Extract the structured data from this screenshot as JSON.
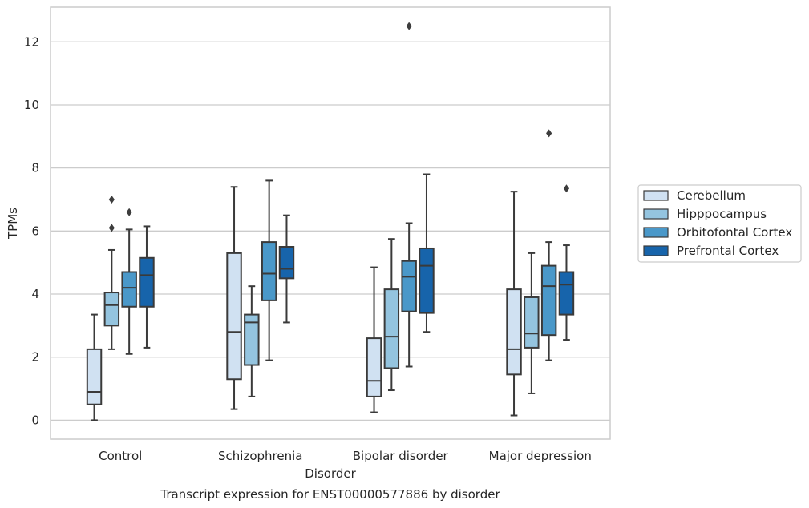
{
  "chart_data": {
    "type": "boxplot",
    "xlabel": "Disorder",
    "ylabel": "TPMs",
    "caption": "Transcript expression for ENST00000577886 by disorder",
    "ylim": [
      -0.6,
      13.1
    ],
    "yticks": [
      0,
      2,
      4,
      6,
      8,
      10,
      12
    ],
    "ytick_labels": [
      "0",
      "2",
      "4",
      "6",
      "8",
      "10",
      "12"
    ],
    "grid": "horizontal",
    "legend_position": "right",
    "categories": [
      "Control",
      "Schizophrenia",
      "Bipolar disorder",
      "Major depression"
    ],
    "series": [
      {
        "name": "Cerebellum",
        "color": "#d0e1f2",
        "boxes": [
          {
            "whislo": 0.0,
            "q1": 0.5,
            "med": 0.9,
            "q3": 2.25,
            "whishi": 3.35,
            "fliers": []
          },
          {
            "whislo": 0.35,
            "q1": 1.3,
            "med": 2.8,
            "q3": 5.3,
            "whishi": 7.4,
            "fliers": []
          },
          {
            "whislo": 0.25,
            "q1": 0.75,
            "med": 1.25,
            "q3": 2.6,
            "whishi": 4.85,
            "fliers": []
          },
          {
            "whislo": 0.15,
            "q1": 1.45,
            "med": 2.25,
            "q3": 4.15,
            "whishi": 7.25,
            "fliers": []
          }
        ]
      },
      {
        "name": "Hipppocampus",
        "color": "#94c4df",
        "boxes": [
          {
            "whislo": 2.25,
            "q1": 3.0,
            "med": 3.65,
            "q3": 4.05,
            "whishi": 5.4,
            "fliers": [
              6.1,
              7.0
            ]
          },
          {
            "whislo": 0.75,
            "q1": 1.75,
            "med": 3.1,
            "q3": 3.35,
            "whishi": 4.25,
            "fliers": []
          },
          {
            "whislo": 0.95,
            "q1": 1.65,
            "med": 2.65,
            "q3": 4.15,
            "whishi": 5.75,
            "fliers": []
          },
          {
            "whislo": 0.85,
            "q1": 2.3,
            "med": 2.75,
            "q3": 3.9,
            "whishi": 5.3,
            "fliers": []
          }
        ]
      },
      {
        "name": "Orbitofontal Cortex",
        "color": "#4a98c9",
        "boxes": [
          {
            "whislo": 2.1,
            "q1": 3.6,
            "med": 4.2,
            "q3": 4.7,
            "whishi": 6.05,
            "fliers": [
              6.6
            ]
          },
          {
            "whislo": 1.9,
            "q1": 3.8,
            "med": 4.65,
            "q3": 5.65,
            "whishi": 7.6,
            "fliers": []
          },
          {
            "whislo": 1.7,
            "q1": 3.45,
            "med": 4.55,
            "q3": 5.05,
            "whishi": 6.25,
            "fliers": [
              12.5
            ]
          },
          {
            "whislo": 1.9,
            "q1": 2.7,
            "med": 4.25,
            "q3": 4.9,
            "whishi": 5.65,
            "fliers": [
              9.1
            ]
          }
        ]
      },
      {
        "name": "Prefrontal Cortex",
        "color": "#1764ab",
        "boxes": [
          {
            "whislo": 2.3,
            "q1": 3.6,
            "med": 4.6,
            "q3": 5.15,
            "whishi": 6.15,
            "fliers": []
          },
          {
            "whislo": 3.1,
            "q1": 4.5,
            "med": 4.8,
            "q3": 5.5,
            "whishi": 6.5,
            "fliers": []
          },
          {
            "whislo": 2.8,
            "q1": 3.4,
            "med": 4.9,
            "q3": 5.45,
            "whishi": 7.8,
            "fliers": []
          },
          {
            "whislo": 2.55,
            "q1": 3.35,
            "med": 4.3,
            "q3": 4.7,
            "whishi": 5.55,
            "fliers": [
              7.35
            ]
          }
        ]
      }
    ]
  }
}
